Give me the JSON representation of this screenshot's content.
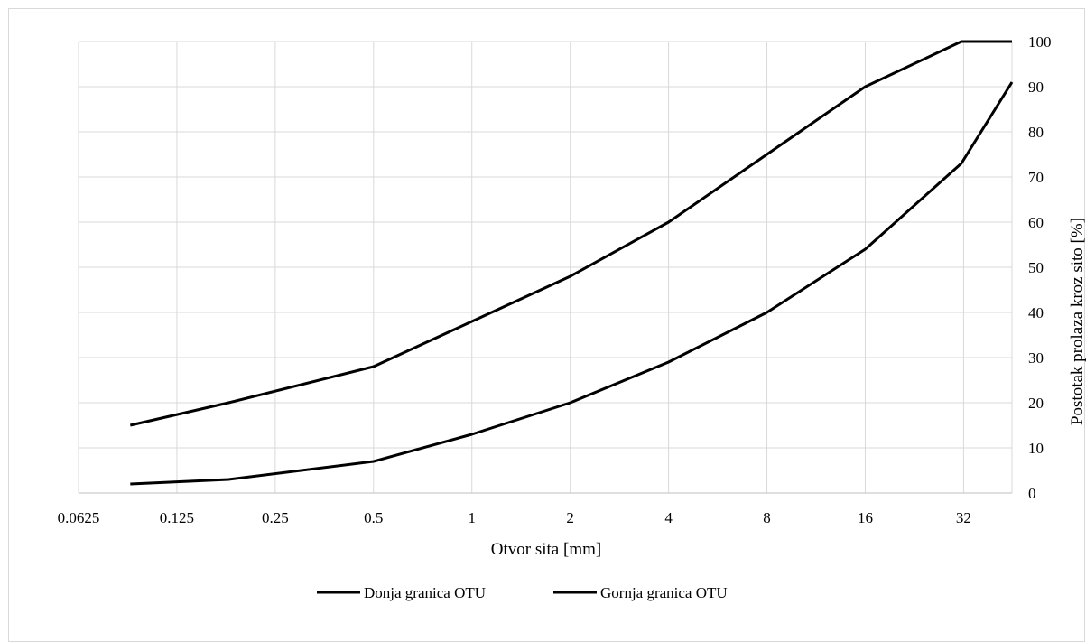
{
  "chart_data": {
    "type": "line",
    "x_scale": "log2",
    "x_tick_labels": [
      "0.0625",
      "0.125",
      "0.25",
      "0.5",
      "1",
      "2",
      "4",
      "8",
      "16",
      "32"
    ],
    "x_ticks": [
      0.0625,
      0.125,
      0.25,
      0.5,
      1,
      2,
      4,
      8,
      16,
      32
    ],
    "xlim": [
      0.0625,
      45
    ],
    "ylim": [
      0,
      100
    ],
    "y_ticks": [
      0,
      10,
      20,
      30,
      40,
      50,
      60,
      70,
      80,
      90,
      100
    ],
    "xlabel": "Otvor sita [mm]",
    "ylabel": "Postotak prolaza kroz sito [%]",
    "y_axis_side": "right",
    "grid": true,
    "legend_position": "bottom",
    "series": [
      {
        "name": "Donja granica OTU",
        "color": "#000000",
        "x": [
          0.09,
          0.18,
          0.5,
          1,
          2,
          4,
          8,
          16,
          31.5,
          45
        ],
        "y": [
          15,
          20,
          28,
          38,
          48,
          60,
          75,
          90,
          100,
          100
        ]
      },
      {
        "name": "Gornja granica OTU",
        "color": "#000000",
        "x": [
          0.09,
          0.18,
          0.5,
          1,
          2,
          4,
          8,
          16,
          31.5,
          45
        ],
        "y": [
          2,
          3,
          7,
          13,
          20,
          29,
          40,
          54,
          73,
          91
        ]
      }
    ]
  }
}
